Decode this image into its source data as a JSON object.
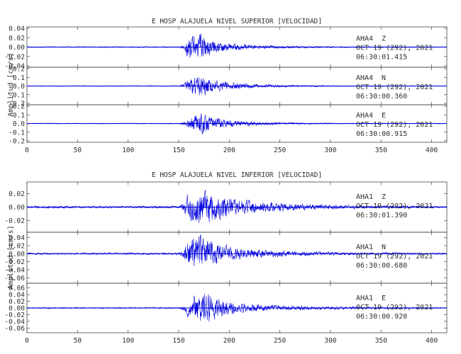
{
  "chart_data": [
    {
      "type": "line",
      "title": "E HOSP ALAJUELA NIVEL SUPERIOR [VELOCIDAD]",
      "xlabel": "",
      "ylabel": "Amplitud [cm/s]",
      "xlim": [
        0,
        415
      ],
      "x_ticks": [
        "0",
        "50",
        "100",
        "150",
        "200",
        "250",
        "300",
        "350",
        "400"
      ],
      "series_color": "#0000dd",
      "grid": false,
      "series": [
        {
          "station": "AHA4",
          "component": "Z",
          "date": "OCT 19 (292), 2021",
          "time": "06:30:01.415",
          "ylim": [
            -0.04,
            0.04
          ],
          "y_ticks": [
            "0.04",
            "0.02",
            "0.00",
            "-0.02",
            "-0.04"
          ],
          "onset": 155,
          "peak_time": 168,
          "peak_amplitude": 0.035,
          "noise_level": 0.0012,
          "envelope": [
            [
              150,
              0.0015
            ],
            [
              155,
              0.006
            ],
            [
              158,
              0.025
            ],
            [
              163,
              0.032
            ],
            [
              168,
              0.035
            ],
            [
              175,
              0.03
            ],
            [
              180,
              0.022
            ],
            [
              190,
              0.015
            ],
            [
              200,
              0.01
            ],
            [
              210,
              0.008
            ],
            [
              230,
              0.005
            ],
            [
              260,
              0.003
            ],
            [
              300,
              0.0018
            ],
            [
              415,
              0.0012
            ]
          ]
        },
        {
          "station": "AHA4",
          "component": "N",
          "date": "OCT 19 (292), 2021",
          "time": "06:30:00.360",
          "ylim": [
            -0.2,
            0.2
          ],
          "y_ticks": [
            "0.2",
            "0.1",
            "0.0",
            "-0.1",
            "-0.2"
          ],
          "onset": 155,
          "peak_time": 170,
          "peak_amplitude": 0.16,
          "noise_level": 0.005,
          "envelope": [
            [
              150,
              0.006
            ],
            [
              155,
              0.03
            ],
            [
              158,
              0.08
            ],
            [
              163,
              0.12
            ],
            [
              170,
              0.16
            ],
            [
              176,
              0.14
            ],
            [
              182,
              0.1
            ],
            [
              190,
              0.07
            ],
            [
              200,
              0.05
            ],
            [
              215,
              0.035
            ],
            [
              240,
              0.02
            ],
            [
              270,
              0.012
            ],
            [
              300,
              0.008
            ],
            [
              415,
              0.005
            ]
          ]
        },
        {
          "station": "AHA4",
          "component": "E",
          "date": "OCT 19 (292), 2021",
          "time": "06:30:00.915",
          "ylim": [
            -0.2,
            0.2
          ],
          "y_ticks": [
            "0.2",
            "0.1",
            "0.0",
            "-0.1",
            "-0.2"
          ],
          "onset": 155,
          "peak_time": 170,
          "peak_amplitude": 0.17,
          "noise_level": 0.005,
          "envelope": [
            [
              150,
              0.006
            ],
            [
              155,
              0.025
            ],
            [
              158,
              0.06
            ],
            [
              163,
              0.1
            ],
            [
              168,
              0.15
            ],
            [
              172,
              0.17
            ],
            [
              178,
              0.13
            ],
            [
              185,
              0.09
            ],
            [
              195,
              0.06
            ],
            [
              210,
              0.04
            ],
            [
              240,
              0.02
            ],
            [
              270,
              0.012
            ],
            [
              300,
              0.008
            ],
            [
              415,
              0.005
            ]
          ]
        }
      ]
    },
    {
      "type": "line",
      "title": "E HOSP ALAJUELA NIVEL INFERIOR [VELOCIDAD]",
      "xlabel": "",
      "ylabel": "Amplitud [cm/s]",
      "xlim": [
        0,
        415
      ],
      "x_ticks": [
        "0",
        "50",
        "100",
        "150",
        "200",
        "250",
        "300",
        "350",
        "400"
      ],
      "series_color": "#0000dd",
      "grid": false,
      "series": [
        {
          "station": "AHA1",
          "component": "Z",
          "date": "OCT 19 (292), 2021",
          "time": "06:30:01.390",
          "ylim": [
            -0.035,
            0.035
          ],
          "y_ticks": [
            "0.02",
            "0.00",
            "-0.02"
          ],
          "onset": 155,
          "peak_time": 175,
          "peak_amplitude": 0.029,
          "noise_level": 0.0015,
          "envelope": [
            [
              150,
              0.002
            ],
            [
              155,
              0.008
            ],
            [
              158,
              0.02
            ],
            [
              163,
              0.026
            ],
            [
              170,
              0.029
            ],
            [
              180,
              0.028
            ],
            [
              190,
              0.022
            ],
            [
              200,
              0.017
            ],
            [
              220,
              0.012
            ],
            [
              240,
              0.009
            ],
            [
              270,
              0.006
            ],
            [
              300,
              0.004
            ],
            [
              340,
              0.003
            ],
            [
              415,
              0.0015
            ]
          ]
        },
        {
          "station": "AHA1",
          "component": "N",
          "date": "OCT 19 (292), 2021",
          "time": "06:30:00.680",
          "ylim": [
            -0.07,
            0.05
          ],
          "y_ticks": [
            "0.04",
            "0.02",
            "0.00",
            "-0.02",
            "-0.04",
            "-0.06"
          ],
          "onset": 155,
          "peak_time": 172,
          "peak_amplitude": 0.055,
          "noise_level": 0.0025,
          "envelope": [
            [
              150,
              0.003
            ],
            [
              155,
              0.012
            ],
            [
              158,
              0.035
            ],
            [
              165,
              0.05
            ],
            [
              172,
              0.055
            ],
            [
              180,
              0.045
            ],
            [
              190,
              0.03
            ],
            [
              200,
              0.022
            ],
            [
              215,
              0.016
            ],
            [
              240,
              0.01
            ],
            [
              270,
              0.007
            ],
            [
              300,
              0.005
            ],
            [
              415,
              0.0025
            ]
          ]
        },
        {
          "station": "AHA1",
          "component": "E",
          "date": "OCT 19 (292), 2021",
          "time": "06:30:00.920",
          "ylim": [
            -0.07,
            0.07
          ],
          "y_ticks": [
            "0.06",
            "0.04",
            "0.02",
            "0.00",
            "-0.02",
            "-0.04",
            "-0.06"
          ],
          "onset": 155,
          "peak_time": 175,
          "peak_amplitude": 0.055,
          "noise_level": 0.002,
          "envelope": [
            [
              150,
              0.0025
            ],
            [
              155,
              0.01
            ],
            [
              158,
              0.03
            ],
            [
              165,
              0.045
            ],
            [
              172,
              0.052
            ],
            [
              180,
              0.055
            ],
            [
              188,
              0.04
            ],
            [
              195,
              0.03
            ],
            [
              205,
              0.022
            ],
            [
              220,
              0.015
            ],
            [
              245,
              0.01
            ],
            [
              280,
              0.007
            ],
            [
              310,
              0.005
            ],
            [
              415,
              0.002
            ]
          ]
        }
      ]
    }
  ]
}
